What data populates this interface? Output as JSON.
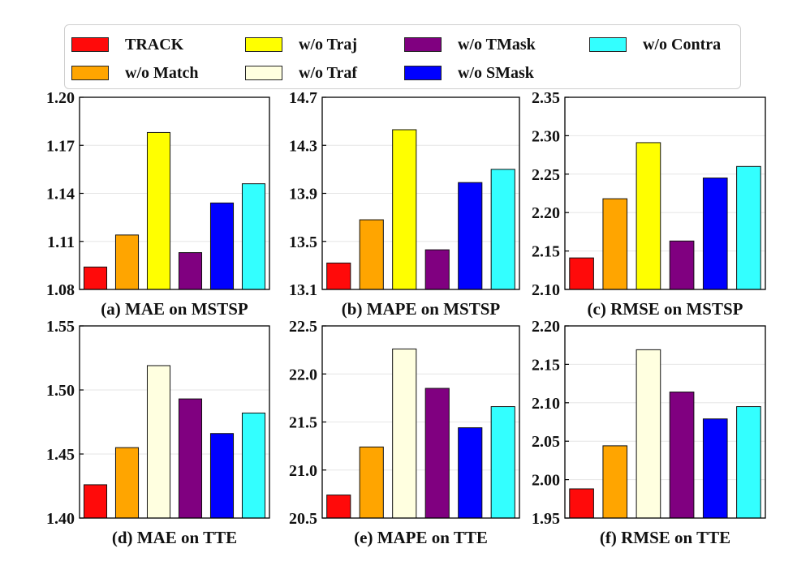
{
  "legend": [
    {
      "label": "TRACK",
      "color": "#ff0a0a"
    },
    {
      "label": "w/o Match",
      "color": "#ffa500"
    },
    {
      "label": "w/o Traj",
      "color": "#ffff00"
    },
    {
      "label": "w/o Traf",
      "color": "#ffffe0"
    },
    {
      "label": "w/o TMask",
      "color": "#800080"
    },
    {
      "label": "w/o SMask",
      "color": "#0000ff"
    },
    {
      "label": "w/o Contra",
      "color": "#33ffff"
    }
  ],
  "chart_data": [
    {
      "type": "bar",
      "title": "(a) MAE on MSTSP",
      "ylim": [
        1.08,
        1.2
      ],
      "yticks": [
        "1.08",
        "1.11",
        "1.14",
        "1.17",
        "1.20"
      ],
      "series_order": [
        "TRACK",
        "w/o Match",
        "w/o Traj",
        "w/o TMask",
        "w/o SMask",
        "w/o Contra"
      ],
      "values": [
        1.094,
        1.114,
        1.178,
        1.103,
        1.134,
        1.146
      ]
    },
    {
      "type": "bar",
      "title": "(b) MAPE on MSTSP",
      "ylim": [
        13.1,
        14.7
      ],
      "yticks": [
        "13.1",
        "13.5",
        "13.9",
        "14.3",
        "14.7"
      ],
      "series_order": [
        "TRACK",
        "w/o Match",
        "w/o Traj",
        "w/o TMask",
        "w/o SMask",
        "w/o Contra"
      ],
      "values": [
        13.32,
        13.68,
        14.43,
        13.43,
        13.99,
        14.1
      ]
    },
    {
      "type": "bar",
      "title": "(c) RMSE on MSTSP",
      "ylim": [
        2.1,
        2.35
      ],
      "yticks": [
        "2.10",
        "2.15",
        "2.20",
        "2.25",
        "2.30",
        "2.35"
      ],
      "series_order": [
        "TRACK",
        "w/o Match",
        "w/o Traj",
        "w/o TMask",
        "w/o SMask",
        "w/o Contra"
      ],
      "values": [
        2.141,
        2.218,
        2.291,
        2.163,
        2.245,
        2.26
      ]
    },
    {
      "type": "bar",
      "title": "(d) MAE on TTE",
      "ylim": [
        1.4,
        1.55
      ],
      "yticks": [
        "1.40",
        "1.45",
        "1.50",
        "1.55"
      ],
      "series_order": [
        "TRACK",
        "w/o Match",
        "w/o Traf",
        "w/o TMask",
        "w/o SMask",
        "w/o Contra"
      ],
      "values": [
        1.426,
        1.455,
        1.519,
        1.493,
        1.466,
        1.482
      ]
    },
    {
      "type": "bar",
      "title": "(e) MAPE on TTE",
      "ylim": [
        20.5,
        22.5
      ],
      "yticks": [
        "20.5",
        "21.0",
        "21.5",
        "22.0",
        "22.5"
      ],
      "series_order": [
        "TRACK",
        "w/o Match",
        "w/o Traf",
        "w/o TMask",
        "w/o SMask",
        "w/o Contra"
      ],
      "values": [
        20.74,
        21.24,
        22.26,
        21.85,
        21.44,
        21.66
      ]
    },
    {
      "type": "bar",
      "title": "(f) RMSE on TTE",
      "ylim": [
        1.95,
        2.2
      ],
      "yticks": [
        "1.95",
        "2.00",
        "2.05",
        "2.10",
        "2.15",
        "2.20"
      ],
      "series_order": [
        "TRACK",
        "w/o Match",
        "w/o Traf",
        "w/o TMask",
        "w/o SMask",
        "w/o Contra"
      ],
      "values": [
        1.988,
        2.044,
        2.169,
        2.114,
        2.079,
        2.095
      ]
    }
  ]
}
